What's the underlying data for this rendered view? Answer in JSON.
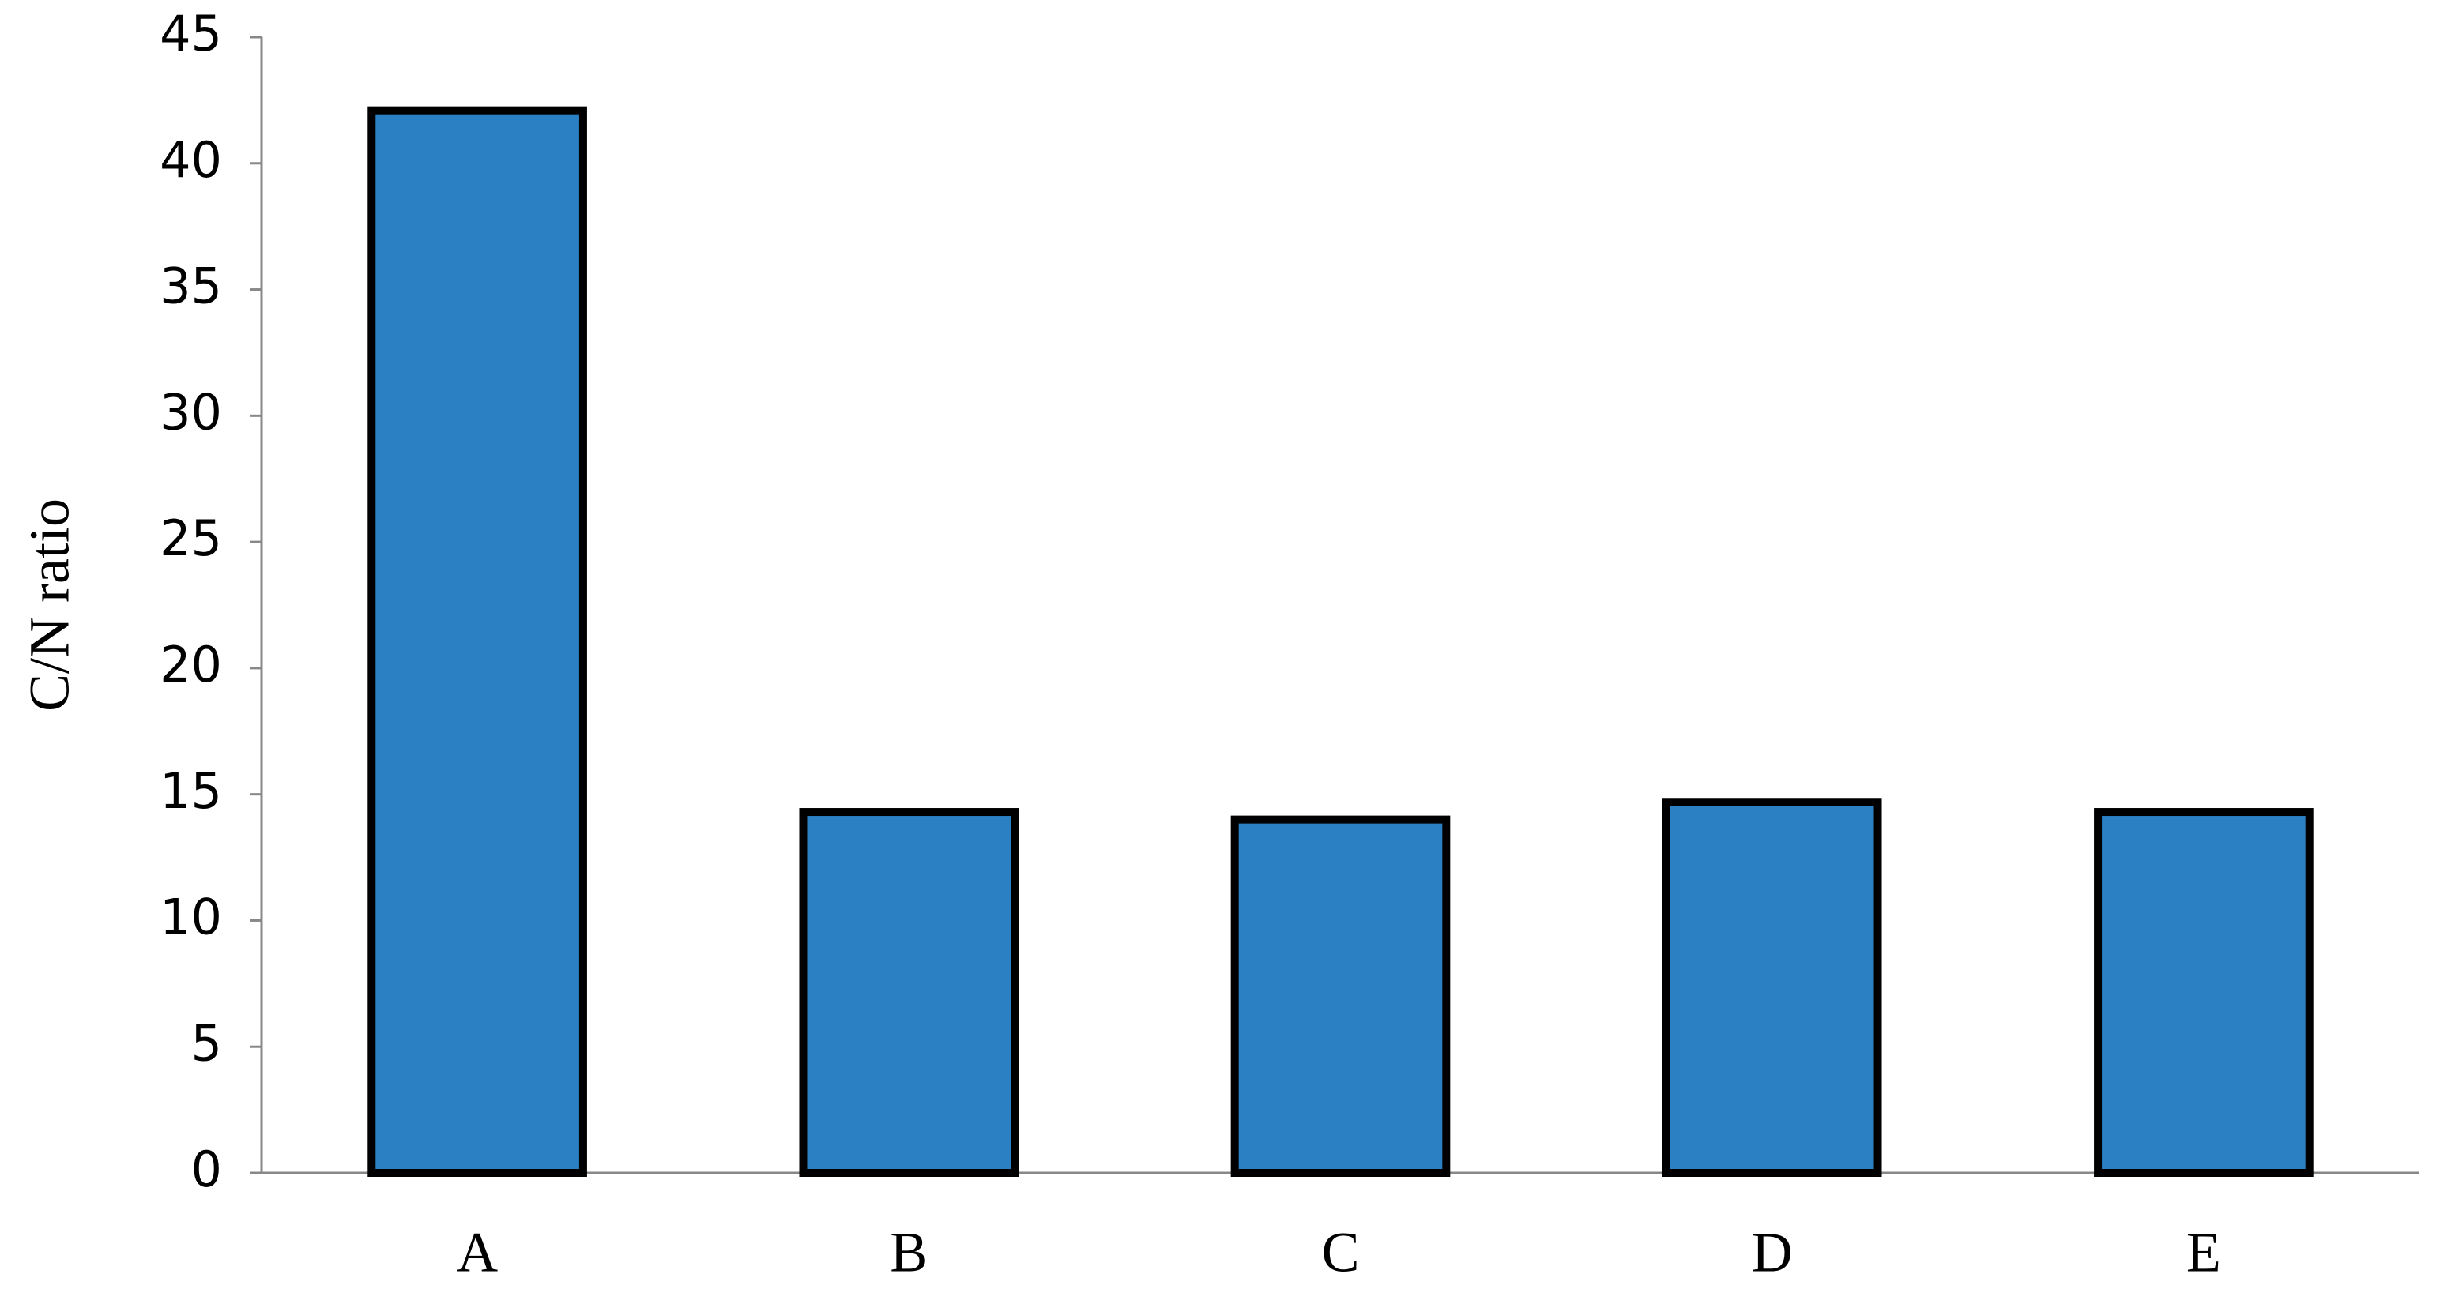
{
  "chart_data": {
    "type": "bar",
    "y_label": "C/N ratio",
    "categories": [
      "A",
      "B",
      "C",
      "D",
      "E"
    ],
    "values": [
      42.1,
      14.3,
      14.0,
      14.7,
      14.3
    ],
    "color": "#2a80c2",
    "ylim": [
      0,
      45
    ],
    "yticks": [
      0,
      5,
      10,
      15,
      20,
      25,
      30,
      35,
      40,
      45
    ],
    "grid": false
  }
}
